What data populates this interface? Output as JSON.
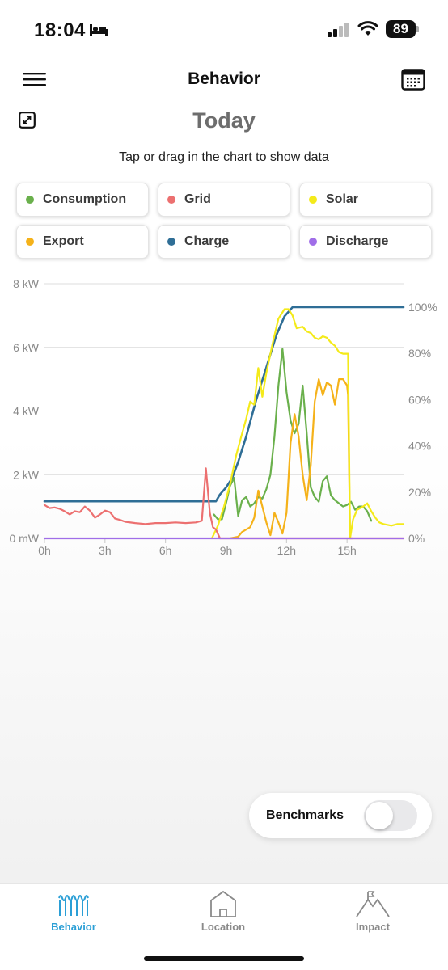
{
  "status_bar": {
    "time": "18:04",
    "battery": "89"
  },
  "header": {
    "title": "Behavior"
  },
  "date_title": "Today",
  "hint": "Tap or drag in the chart to show data",
  "legend": [
    {
      "label": "Consumption",
      "color": "#6ab04c"
    },
    {
      "label": "Grid",
      "color": "#ec7070"
    },
    {
      "label": "Solar",
      "color": "#f4ea1a"
    },
    {
      "label": "Export",
      "color": "#f5b21a"
    },
    {
      "label": "Charge",
      "color": "#2f6e96"
    },
    {
      "label": "Discharge",
      "color": "#a06ee8"
    }
  ],
  "chart_data": {
    "type": "line",
    "x_ticks": [
      "0h",
      "3h",
      "6h",
      "9h",
      "12h",
      "15h"
    ],
    "y_left_ticks": [
      "0 mW",
      "2 kW",
      "4 kW",
      "6 kW",
      "8 kW"
    ],
    "y_right_ticks": [
      "0%",
      "20%",
      "40%",
      "60%",
      "80%",
      "100%"
    ],
    "xlim": [
      0,
      17.8
    ],
    "ylim_left_kw": [
      0,
      8
    ],
    "ylim_right_pct": [
      0,
      100
    ],
    "series": [
      {
        "name": "Grid",
        "axis": "left",
        "color": "#ec7070",
        "points": [
          [
            0,
            1.05
          ],
          [
            0.25,
            0.95
          ],
          [
            0.5,
            0.97
          ],
          [
            0.75,
            0.93
          ],
          [
            1,
            0.85
          ],
          [
            1.25,
            0.75
          ],
          [
            1.5,
            0.85
          ],
          [
            1.75,
            0.82
          ],
          [
            2,
            1.0
          ],
          [
            2.25,
            0.87
          ],
          [
            2.5,
            0.65
          ],
          [
            2.75,
            0.75
          ],
          [
            3,
            0.87
          ],
          [
            3.25,
            0.82
          ],
          [
            3.5,
            0.62
          ],
          [
            3.75,
            0.58
          ],
          [
            4,
            0.52
          ],
          [
            4.5,
            0.48
          ],
          [
            5,
            0.45
          ],
          [
            5.5,
            0.48
          ],
          [
            6,
            0.48
          ],
          [
            6.5,
            0.5
          ],
          [
            7,
            0.48
          ],
          [
            7.5,
            0.5
          ],
          [
            7.8,
            0.55
          ],
          [
            8.0,
            2.2
          ],
          [
            8.2,
            0.8
          ],
          [
            8.35,
            0.35
          ],
          [
            8.5,
            0.28
          ],
          [
            8.7,
            0.0
          ],
          [
            17.8,
            0.0
          ]
        ]
      },
      {
        "name": "Consumption",
        "axis": "left",
        "color": "#6ab04c",
        "points": [
          [
            8.4,
            0.75
          ],
          [
            8.6,
            0.6
          ],
          [
            8.8,
            0.6
          ],
          [
            9.0,
            1.1
          ],
          [
            9.2,
            1.65
          ],
          [
            9.4,
            1.9
          ],
          [
            9.6,
            0.7
          ],
          [
            9.8,
            1.2
          ],
          [
            10.0,
            1.3
          ],
          [
            10.2,
            1.0
          ],
          [
            10.4,
            1.1
          ],
          [
            10.6,
            1.3
          ],
          [
            10.8,
            1.25
          ],
          [
            11.0,
            1.55
          ],
          [
            11.2,
            2.0
          ],
          [
            11.4,
            3.2
          ],
          [
            11.6,
            4.8
          ],
          [
            11.8,
            5.95
          ],
          [
            12.0,
            4.6
          ],
          [
            12.2,
            3.7
          ],
          [
            12.4,
            3.3
          ],
          [
            12.6,
            3.6
          ],
          [
            12.8,
            4.8
          ],
          [
            13.0,
            3.3
          ],
          [
            13.2,
            1.6
          ],
          [
            13.4,
            1.3
          ],
          [
            13.6,
            1.15
          ],
          [
            13.8,
            1.8
          ],
          [
            14.0,
            1.95
          ],
          [
            14.2,
            1.35
          ],
          [
            14.4,
            1.2
          ],
          [
            14.6,
            1.1
          ],
          [
            14.8,
            1.0
          ],
          [
            15.0,
            1.05
          ],
          [
            15.2,
            1.15
          ],
          [
            15.4,
            0.9
          ],
          [
            15.6,
            1.0
          ],
          [
            15.8,
            1.0
          ],
          [
            16.0,
            0.85
          ],
          [
            16.2,
            0.55
          ]
        ]
      },
      {
        "name": "Solar",
        "axis": "left",
        "color": "#f4ea1a",
        "points": [
          [
            8.3,
            0.0
          ],
          [
            8.6,
            0.4
          ],
          [
            8.9,
            1.0
          ],
          [
            9.2,
            1.7
          ],
          [
            9.5,
            2.6
          ],
          [
            9.8,
            3.3
          ],
          [
            10.0,
            3.75
          ],
          [
            10.2,
            4.3
          ],
          [
            10.4,
            4.2
          ],
          [
            10.6,
            5.35
          ],
          [
            10.8,
            4.45
          ],
          [
            11.0,
            5.2
          ],
          [
            11.3,
            6.1
          ],
          [
            11.6,
            6.9
          ],
          [
            11.9,
            7.2
          ],
          [
            12.1,
            7.2
          ],
          [
            12.3,
            7.0
          ],
          [
            12.5,
            6.6
          ],
          [
            12.8,
            6.65
          ],
          [
            13.0,
            6.5
          ],
          [
            13.2,
            6.45
          ],
          [
            13.4,
            6.3
          ],
          [
            13.6,
            6.25
          ],
          [
            13.8,
            6.35
          ],
          [
            14.0,
            6.3
          ],
          [
            14.2,
            6.15
          ],
          [
            14.4,
            6.05
          ],
          [
            14.6,
            5.85
          ],
          [
            14.8,
            5.8
          ],
          [
            15.05,
            5.8
          ],
          [
            15.15,
            0.0
          ],
          [
            15.3,
            0.6
          ],
          [
            15.5,
            0.9
          ],
          [
            15.8,
            1.0
          ],
          [
            16.0,
            1.1
          ],
          [
            16.2,
            0.85
          ],
          [
            16.4,
            0.65
          ],
          [
            16.6,
            0.5
          ],
          [
            16.8,
            0.45
          ],
          [
            17.2,
            0.4
          ],
          [
            17.5,
            0.45
          ],
          [
            17.8,
            0.45
          ]
        ]
      },
      {
        "name": "Export",
        "axis": "left",
        "color": "#f5b21a",
        "points": [
          [
            9.2,
            0.0
          ],
          [
            9.6,
            0.05
          ],
          [
            9.8,
            0.2
          ],
          [
            10.2,
            0.35
          ],
          [
            10.4,
            0.65
          ],
          [
            10.6,
            1.5
          ],
          [
            10.8,
            1.0
          ],
          [
            11.0,
            0.5
          ],
          [
            11.2,
            0.1
          ],
          [
            11.4,
            0.8
          ],
          [
            11.6,
            0.5
          ],
          [
            11.8,
            0.15
          ],
          [
            12.0,
            0.8
          ],
          [
            12.2,
            3.0
          ],
          [
            12.4,
            3.9
          ],
          [
            12.6,
            3.2
          ],
          [
            12.8,
            2.0
          ],
          [
            13.0,
            1.2
          ],
          [
            13.2,
            2.3
          ],
          [
            13.4,
            4.3
          ],
          [
            13.6,
            5.0
          ],
          [
            13.8,
            4.5
          ],
          [
            14.0,
            4.9
          ],
          [
            14.2,
            4.8
          ],
          [
            14.4,
            4.2
          ],
          [
            14.6,
            5.0
          ],
          [
            14.8,
            5.0
          ],
          [
            15.0,
            4.8
          ],
          [
            15.05,
            4.5
          ],
          [
            15.15,
            0.0
          ],
          [
            15.3,
            0.0
          ]
        ]
      },
      {
        "name": "Charge",
        "axis": "right",
        "color": "#2f6e96",
        "points": [
          [
            0,
            16
          ],
          [
            8.5,
            16
          ],
          [
            8.7,
            19
          ],
          [
            9.0,
            22
          ],
          [
            9.3,
            26
          ],
          [
            9.6,
            33
          ],
          [
            10.0,
            44
          ],
          [
            10.5,
            60
          ],
          [
            11.0,
            74
          ],
          [
            11.5,
            88
          ],
          [
            11.9,
            96
          ],
          [
            12.3,
            100
          ],
          [
            17.8,
            100
          ]
        ]
      },
      {
        "name": "Discharge",
        "axis": "right",
        "color": "#a06ee8",
        "points": [
          [
            0,
            0
          ],
          [
            17.8,
            0
          ]
        ]
      }
    ]
  }
}
